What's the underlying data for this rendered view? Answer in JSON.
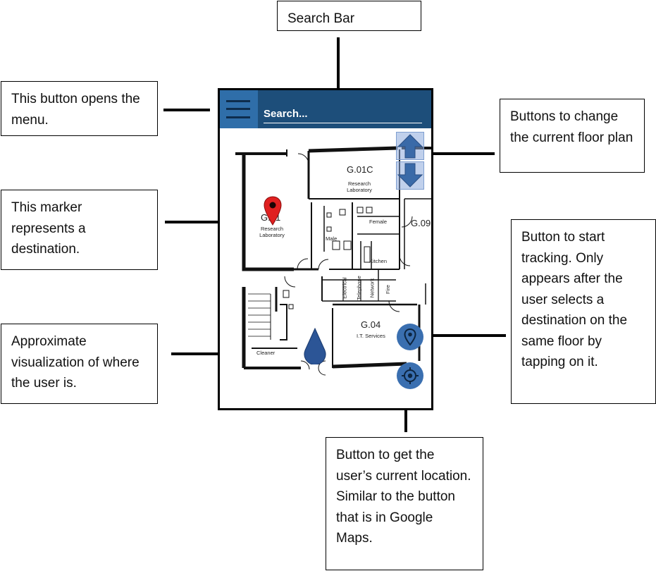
{
  "callouts": {
    "search_bar": "Search Bar",
    "menu_button": "This button opens the menu.",
    "floor_buttons": "Buttons to change the current floor plan",
    "destination_marker": "This marker represents a destination.",
    "tracking_button": "Button to start tracking. Only appears after the user selects a destination on the same floor by tapping on it.",
    "user_position": "Approximate visualization of where the user is.",
    "location_button": "Button to get the user’s current location. Similar to the button that is in Google Maps."
  },
  "app": {
    "search_placeholder": "Search...",
    "colors": {
      "appbar": "#1d4e7a",
      "menu_button": "#2f6ea9",
      "button": "#3a6fb0",
      "marker": "#e02020",
      "user_marker": "#2c5596"
    },
    "icons": {
      "menu": "hamburger-menu-icon",
      "floor_up": "arrow-up-icon",
      "floor_down": "arrow-down-icon",
      "marker": "map-pin-icon",
      "tracking": "location-pin-icon",
      "location": "crosshair-icon",
      "user": "user-position-icon"
    }
  },
  "map": {
    "rooms": {
      "g01c_code": "G.01C",
      "g01c_name": "Research Laboratory",
      "g01_code": "G.01",
      "g01_name": "Research Laboratory",
      "g09_code": "G.09",
      "male": "Male",
      "female": "Female",
      "kitchen": "Kitchen",
      "electrical": "Electrical",
      "telephone": "Telephone",
      "network": "Network",
      "fire": "Fire",
      "g04_code": "G.04",
      "g04_name": "I.T. Services",
      "cleaner": "Cleaner"
    }
  }
}
